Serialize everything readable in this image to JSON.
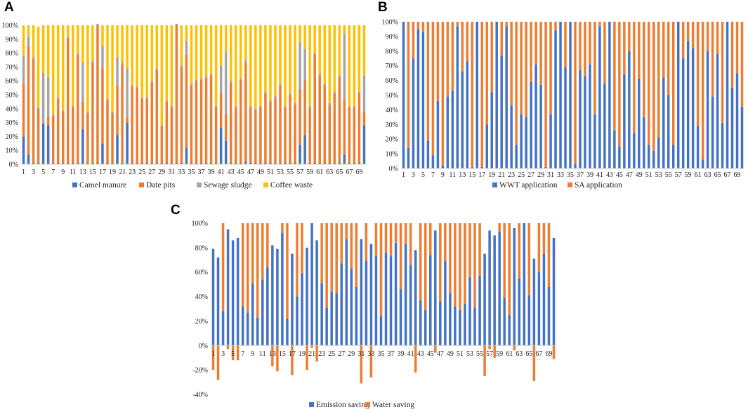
{
  "chart_data": [
    {
      "panel": "A",
      "type": "bar",
      "stacked": true,
      "normalized": true,
      "ylim": [
        0,
        100
      ],
      "yticks": [
        "0%",
        "10%",
        "20%",
        "30%",
        "40%",
        "50%",
        "60%",
        "70%",
        "80%",
        "90%",
        "100%"
      ],
      "xticks": [
        "1",
        "3",
        "5",
        "7",
        "9",
        "11",
        "13",
        "15",
        "17",
        "19",
        "21",
        "23",
        "25",
        "27",
        "29",
        "31",
        "33",
        "35",
        "37",
        "39",
        "41",
        "43",
        "45",
        "47",
        "49",
        "51",
        "53",
        "55",
        "57",
        "59",
        "61",
        "63",
        "65",
        "67",
        "69"
      ],
      "colors": [
        "#4472C4",
        "#ED7D31",
        "#A5A5A5",
        "#FFC000"
      ],
      "legend": [
        "Camel manure",
        "Date pits",
        "Sewage sludge",
        "Coffee waste"
      ],
      "categories": [
        "1",
        "2",
        "3",
        "4",
        "5",
        "6",
        "7",
        "8",
        "9",
        "10",
        "11",
        "12",
        "13",
        "14",
        "15",
        "16",
        "17",
        "18",
        "19",
        "20",
        "21",
        "22",
        "23",
        "24",
        "25",
        "26",
        "27",
        "28",
        "29",
        "30",
        "31",
        "32",
        "33",
        "34",
        "35",
        "36",
        "37",
        "38",
        "39",
        "40",
        "41",
        "42",
        "43",
        "44",
        "45",
        "46",
        "47",
        "48",
        "49",
        "50",
        "51",
        "52",
        "53",
        "54",
        "55",
        "56",
        "57",
        "58",
        "59",
        "60",
        "61",
        "62",
        "63",
        "64",
        "65",
        "66",
        "67",
        "68",
        "69",
        "70"
      ],
      "series": [
        {
          "name": "Camel manure",
          "values": [
            20,
            7,
            1,
            1,
            29,
            28,
            1,
            1,
            1,
            1,
            1,
            1,
            25,
            1,
            1,
            1,
            15,
            1,
            1,
            21,
            1,
            30,
            1,
            1,
            1,
            1,
            1,
            1,
            1,
            1,
            1,
            1,
            1,
            12,
            1,
            1,
            1,
            1,
            1,
            1,
            26,
            17,
            1,
            1,
            1,
            2,
            1,
            1,
            1,
            1,
            1,
            1,
            1,
            1,
            1,
            1,
            14,
            21,
            1,
            1,
            1,
            1,
            1,
            1,
            1,
            7,
            1,
            1,
            1,
            28
          ]
        },
        {
          "name": "Date pits",
          "values": [
            38,
            78,
            75,
            39,
            1,
            6,
            34,
            46,
            37,
            90,
            40,
            78,
            20,
            36,
            72,
            99,
            54,
            45,
            36,
            36,
            71,
            4,
            55,
            54,
            46,
            46,
            58,
            67,
            26,
            44,
            40,
            99,
            69,
            67,
            56,
            59,
            60,
            61,
            63,
            40,
            25,
            19,
            58,
            40,
            60,
            71,
            40,
            38,
            40,
            50,
            44,
            47,
            56,
            40,
            49,
            42,
            40,
            40,
            40,
            78,
            63,
            56,
            42,
            50,
            62,
            39,
            40,
            40,
            50,
            10
          ]
        },
        {
          "name": "Sewage sludge",
          "values": [
            20,
            7,
            1,
            1,
            36,
            29,
            1,
            1,
            1,
            1,
            1,
            1,
            28,
            1,
            1,
            1,
            16,
            1,
            1,
            20,
            1,
            35,
            1,
            1,
            1,
            1,
            1,
            1,
            1,
            1,
            1,
            1,
            1,
            10,
            1,
            1,
            1,
            1,
            1,
            1,
            20,
            45,
            1,
            1,
            1,
            2,
            1,
            1,
            1,
            1,
            1,
            1,
            1,
            1,
            1,
            1,
            34,
            22,
            1,
            1,
            1,
            1,
            1,
            1,
            1,
            48,
            1,
            1,
            1,
            26
          ]
        },
        {
          "name": "Coffee waste",
          "values": [
            22,
            8,
            23,
            58,
            34,
            37,
            64,
            52,
            61,
            8,
            58,
            20,
            27,
            62,
            26,
            0,
            15,
            53,
            62,
            23,
            27,
            31,
            43,
            44,
            52,
            52,
            40,
            31,
            72,
            54,
            58,
            0,
            29,
            11,
            42,
            39,
            38,
            37,
            35,
            58,
            29,
            19,
            40,
            58,
            38,
            25,
            58,
            60,
            58,
            48,
            54,
            51,
            42,
            58,
            49,
            56,
            12,
            17,
            58,
            20,
            35,
            42,
            56,
            48,
            36,
            6,
            58,
            58,
            48,
            36
          ]
        }
      ]
    },
    {
      "panel": "B",
      "type": "bar",
      "stacked": true,
      "normalized": true,
      "ylim": [
        0,
        100
      ],
      "yticks": [
        "0%",
        "10%",
        "20%",
        "30%",
        "40%",
        "50%",
        "60%",
        "70%",
        "80%",
        "90%",
        "100%"
      ],
      "xticks": [
        "1",
        "3",
        "5",
        "7",
        "9",
        "11",
        "13",
        "15",
        "17",
        "19",
        "21",
        "23",
        "25",
        "27",
        "29",
        "31",
        "33",
        "35",
        "37",
        "39",
        "41",
        "43",
        "45",
        "47",
        "49",
        "51",
        "53",
        "55",
        "57",
        "59",
        "61",
        "63",
        "65",
        "67",
        "69"
      ],
      "colors": [
        "#4472C4",
        "#ED7D31"
      ],
      "legend": [
        "WWT application",
        "SA application"
      ],
      "categories": [
        "1",
        "2",
        "3",
        "4",
        "5",
        "6",
        "7",
        "8",
        "9",
        "10",
        "11",
        "12",
        "13",
        "14",
        "15",
        "16",
        "17",
        "18",
        "19",
        "20",
        "21",
        "22",
        "23",
        "24",
        "25",
        "26",
        "27",
        "28",
        "29",
        "30",
        "31",
        "32",
        "33",
        "34",
        "35",
        "36",
        "37",
        "38",
        "39",
        "40",
        "41",
        "42",
        "43",
        "44",
        "45",
        "46",
        "47",
        "48",
        "49",
        "50",
        "51",
        "52",
        "53",
        "54",
        "55",
        "56",
        "57",
        "58",
        "59",
        "60",
        "61",
        "62",
        "63",
        "64",
        "65",
        "66",
        "67",
        "68",
        "69",
        "70"
      ],
      "series": [
        {
          "name": "WWT application",
          "values": [
            100,
            14,
            75,
            95,
            93,
            19,
            9,
            46,
            2,
            49,
            53,
            97,
            66,
            73,
            1,
            100,
            1,
            30,
            52,
            100,
            77,
            97,
            43,
            16,
            37,
            35,
            59,
            71,
            57,
            1,
            37,
            94,
            100,
            69,
            100,
            3,
            67,
            63,
            71,
            37,
            97,
            58,
            100,
            26,
            15,
            64,
            80,
            24,
            61,
            35,
            16,
            12,
            21,
            62,
            50,
            16,
            100,
            75,
            87,
            82,
            29,
            6,
            80,
            49,
            78,
            31,
            100,
            55,
            65,
            42
          ]
        },
        {
          "name": "SA application",
          "values": [
            0,
            86,
            25,
            5,
            7,
            81,
            91,
            54,
            98,
            51,
            47,
            3,
            34,
            27,
            99,
            0,
            99,
            70,
            48,
            0,
            23,
            3,
            57,
            84,
            63,
            65,
            41,
            29,
            43,
            99,
            63,
            6,
            0,
            31,
            0,
            97,
            33,
            37,
            29,
            63,
            3,
            42,
            0,
            74,
            85,
            36,
            20,
            76,
            39,
            65,
            84,
            88,
            79,
            38,
            50,
            84,
            0,
            25,
            13,
            18,
            71,
            94,
            20,
            51,
            22,
            69,
            0,
            45,
            35,
            58
          ]
        }
      ]
    },
    {
      "panel": "C",
      "type": "bar",
      "stacked": true,
      "ylim": [
        -40,
        100
      ],
      "yticks": [
        "-40%",
        "-20%",
        "0%",
        "20%",
        "40%",
        "60%",
        "80%",
        "100%"
      ],
      "xticks": [
        "1",
        "3",
        "5",
        "7",
        "9",
        "11",
        "13",
        "15",
        "17",
        "19",
        "21",
        "23",
        "25",
        "27",
        "29",
        "31",
        "33",
        "35",
        "37",
        "39",
        "41",
        "43",
        "45",
        "47",
        "49",
        "51",
        "53",
        "55",
        "57",
        "59",
        "61",
        "63",
        "65",
        "67",
        "69"
      ],
      "colors": [
        "#4472C4",
        "#ED7D31"
      ],
      "legend": [
        "Emission saving",
        "Water saving"
      ],
      "categories": [
        "1",
        "2",
        "3",
        "4",
        "5",
        "6",
        "7",
        "8",
        "9",
        "10",
        "11",
        "12",
        "13",
        "14",
        "15",
        "16",
        "17",
        "18",
        "19",
        "20",
        "21",
        "22",
        "23",
        "24",
        "25",
        "26",
        "27",
        "28",
        "29",
        "30",
        "31",
        "32",
        "33",
        "34",
        "35",
        "36",
        "37",
        "38",
        "39",
        "40",
        "41",
        "42",
        "43",
        "44",
        "45",
        "46",
        "47",
        "48",
        "49",
        "50",
        "51",
        "52",
        "53",
        "54",
        "55",
        "56",
        "57",
        "58",
        "59",
        "60",
        "61",
        "62",
        "63",
        "64",
        "65",
        "66",
        "67",
        "68",
        "69",
        "70"
      ],
      "series": [
        {
          "name": "Emission saving",
          "values": [
            79,
            72,
            28,
            95,
            86,
            88,
            32,
            27,
            51,
            23,
            54,
            64,
            82,
            79,
            92,
            22,
            75,
            40,
            59,
            80,
            100,
            86,
            51,
            31,
            44,
            43,
            67,
            87,
            63,
            48,
            87,
            69,
            83,
            73,
            24,
            76,
            73,
            84,
            46,
            83,
            66,
            78,
            37,
            29,
            74,
            94,
            36,
            69,
            43,
            32,
            29,
            34,
            56,
            31,
            57,
            75,
            94,
            90,
            93,
            39,
            25,
            96,
            55,
            100,
            41,
            71,
            60,
            75,
            48,
            88
          ]
        },
        {
          "name": "Water saving",
          "values": [
            -20,
            -28,
            72,
            -3,
            -12,
            -12,
            68,
            73,
            49,
            77,
            46,
            36,
            -17,
            -21,
            8,
            78,
            -24,
            60,
            41,
            -20,
            -2,
            -13,
            49,
            69,
            56,
            57,
            33,
            13,
            37,
            52,
            -31,
            31,
            -26,
            27,
            76,
            24,
            27,
            16,
            54,
            17,
            34,
            -22,
            63,
            71,
            26,
            -6,
            64,
            31,
            57,
            68,
            71,
            66,
            44,
            69,
            43,
            -25,
            -3,
            -10,
            7,
            61,
            75,
            -4,
            45,
            0,
            59,
            -29,
            40,
            25,
            52,
            -11
          ]
        }
      ]
    }
  ]
}
